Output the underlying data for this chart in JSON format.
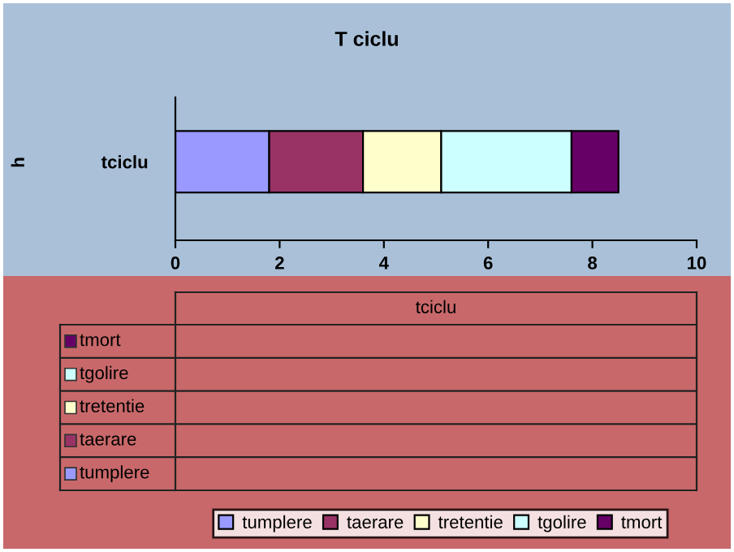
{
  "chart_data": {
    "type": "bar",
    "orientation": "horizontal",
    "stacked": true,
    "title": "T ciclu",
    "ylabel": "h",
    "categories": [
      "tciclu"
    ],
    "series": [
      {
        "name": "tumplere",
        "color": "#9999ff",
        "values": [
          1.8
        ]
      },
      {
        "name": "taerare",
        "color": "#993366",
        "values": [
          1.8
        ]
      },
      {
        "name": "tretentie",
        "color": "#ffffcc",
        "values": [
          1.5
        ]
      },
      {
        "name": "tgolire",
        "color": "#ccffff",
        "values": [
          2.5
        ]
      },
      {
        "name": "tmort",
        "color": "#660066",
        "values": [
          0.9
        ]
      }
    ],
    "xlim": [
      0,
      10
    ],
    "xticks": [
      0,
      2,
      4,
      6,
      8,
      10
    ],
    "grid": false,
    "legend": "bottom"
  }
}
